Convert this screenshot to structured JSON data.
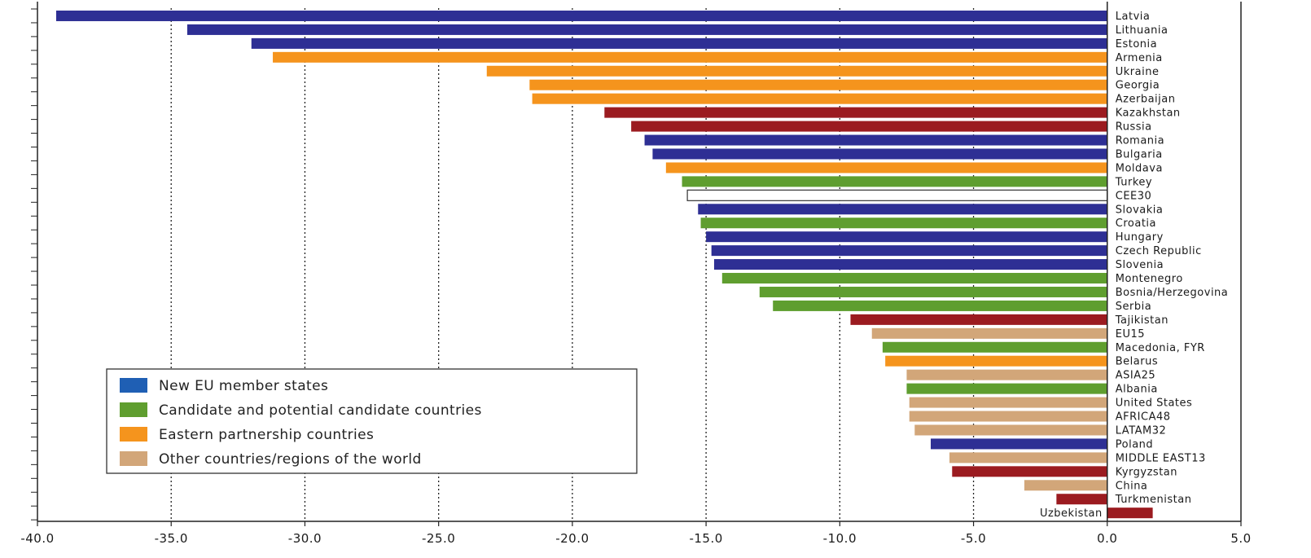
{
  "chart_data": {
    "type": "bar",
    "orientation": "horizontal",
    "xlim": [
      -40,
      5
    ],
    "x_ticks": [
      -40,
      -35,
      -30,
      -25,
      -20,
      -15,
      -10,
      -5,
      0,
      5
    ],
    "x_tick_labels": [
      "-40.0",
      "-35.0",
      "-30.0",
      "-25.0",
      "-20.0",
      "-15.0",
      "-10.0",
      "-5.0",
      "0.0",
      "5.0"
    ],
    "grid": "vertical dotted",
    "legend_position": "lower-left",
    "colors": {
      "new_eu": "#2e2f94",
      "candidate": "#5f9e2f",
      "eastern": "#f5941d",
      "other": "#d2a679",
      "unassigned": "#9b1b20",
      "aggregate_fill": "#ffffff",
      "aggregate_stroke": "#333333"
    },
    "legend": [
      {
        "label": "New EU member states",
        "group": "new_eu",
        "swatch": "#1f5fb4"
      },
      {
        "label": "Candidate and potential candidate countries",
        "group": "candidate",
        "swatch": "#5f9e2f"
      },
      {
        "label": "Eastern partnership countries",
        "group": "eastern",
        "swatch": "#f5941d"
      },
      {
        "label": "Other countries/regions of the world",
        "group": "other",
        "swatch": "#d2a679"
      }
    ],
    "categories": [
      "Latvia",
      "Lithuania",
      "Estonia",
      "Armenia",
      "Ukraine",
      "Georgia",
      "Azerbaijan",
      "Kazakhstan",
      "Russia",
      "Romania",
      "Bulgaria",
      "Moldava",
      "Turkey",
      "CEE30",
      "Slovakia",
      "Croatia",
      "Hungary",
      "Czech Republic",
      "Slovenia",
      "Montenegro",
      "Bosnia/Herzegovina",
      "Serbia",
      "Tajikistan",
      "EU15",
      "Macedonia, FYR",
      "Belarus",
      "ASIA25",
      "Albania",
      "United States",
      "AFRICA48",
      "LATAM32",
      "Poland",
      "MIDDLE EAST13",
      "Kyrgyzstan",
      "China",
      "Turkmenistan",
      "Uzbekistan"
    ],
    "values": [
      -39.3,
      -34.4,
      -32.0,
      -31.2,
      -23.2,
      -21.6,
      -21.5,
      -18.8,
      -17.8,
      -17.3,
      -17.0,
      -16.5,
      -15.9,
      -15.7,
      -15.3,
      -15.2,
      -15.0,
      -14.8,
      -14.7,
      -14.4,
      -13.0,
      -12.5,
      -9.6,
      -8.8,
      -8.4,
      -8.3,
      -7.5,
      -7.5,
      -7.4,
      -7.4,
      -7.2,
      -6.6,
      -5.9,
      -5.8,
      -3.1,
      -1.9,
      1.7
    ],
    "groups": [
      "new_eu",
      "new_eu",
      "new_eu",
      "eastern",
      "eastern",
      "eastern",
      "eastern",
      "unassigned",
      "unassigned",
      "new_eu",
      "new_eu",
      "eastern",
      "candidate",
      "aggregate",
      "new_eu",
      "candidate",
      "new_eu",
      "new_eu",
      "new_eu",
      "candidate",
      "candidate",
      "candidate",
      "unassigned",
      "other",
      "candidate",
      "eastern",
      "other",
      "candidate",
      "other",
      "other",
      "other",
      "new_eu",
      "other",
      "unassigned",
      "other",
      "unassigned",
      "unassigned"
    ]
  }
}
